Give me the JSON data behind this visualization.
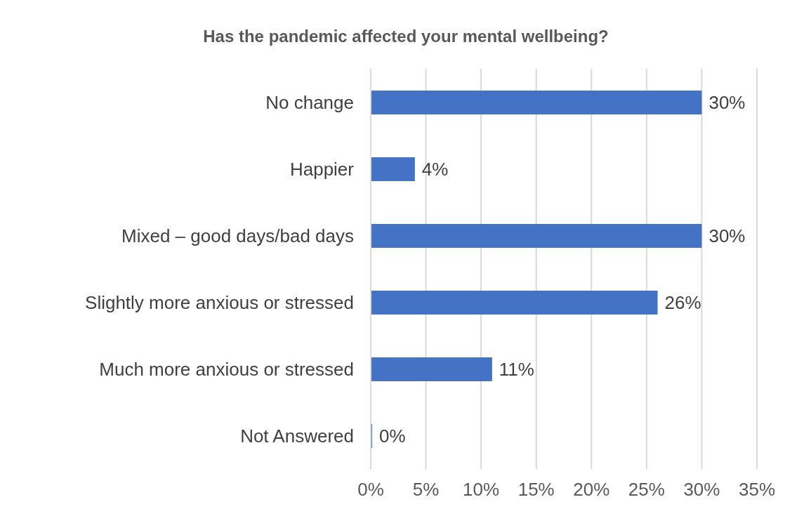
{
  "chart_data": {
    "type": "bar",
    "orientation": "horizontal",
    "title": "Has the pandemic affected your mental wellbeing?",
    "categories": [
      "No change",
      "Happier",
      "Mixed – good days/bad days",
      "Slightly more anxious or stressed",
      "Much more anxious or stressed",
      "Not Answered"
    ],
    "values": [
      30,
      4,
      30,
      26,
      11,
      0
    ],
    "value_labels": [
      "30%",
      "4%",
      "30%",
      "26%",
      "11%",
      "0%"
    ],
    "color": "#4472c4",
    "xlim": [
      0,
      35
    ],
    "xticks": [
      {
        "value": 0,
        "label": "0%"
      },
      {
        "value": 5,
        "label": "5%"
      },
      {
        "value": 10,
        "label": "10%"
      },
      {
        "value": 15,
        "label": "15%"
      },
      {
        "value": 20,
        "label": "20%"
      },
      {
        "value": 25,
        "label": "25%"
      },
      {
        "value": 30,
        "label": "30%"
      },
      {
        "value": 35,
        "label": "35%"
      }
    ],
    "grid": "x",
    "legend": false
  }
}
